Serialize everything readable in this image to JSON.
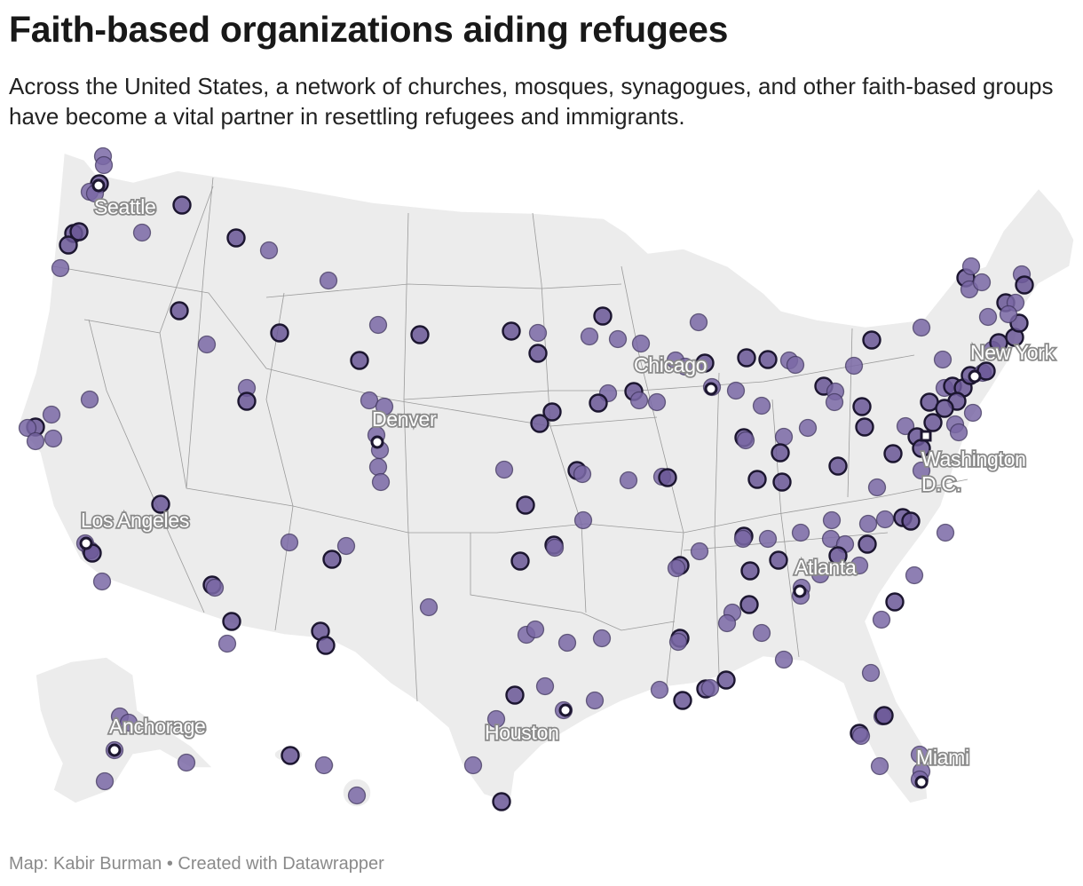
{
  "title": "Faith-based organizations aiding refugees",
  "subtitle": "Across the United States, a network of churches, mosques, synagogues, and other faith-based groups have become a vital partner in resettling refugees and immigrants.",
  "footer": "Map: Kabir Burman • Created with Datawrapper",
  "colors": {
    "dot": "#7a68a6",
    "dot_stroke": "#3b3157",
    "land": "#ececec",
    "label_halo": "#8a8a8a"
  },
  "cities": [
    {
      "id": "seattle",
      "label": "Seattle"
    },
    {
      "id": "denver",
      "label": "Denver"
    },
    {
      "id": "chicago",
      "label": "Chicago"
    },
    {
      "id": "new-york",
      "label": "New York"
    },
    {
      "id": "washington",
      "label": "Washington D.C."
    },
    {
      "id": "los-angeles",
      "label": "Los Angeles"
    },
    {
      "id": "atlanta",
      "label": "Atlanta"
    },
    {
      "id": "houston",
      "label": "Houston"
    },
    {
      "id": "anchorage",
      "label": "Anchorage"
    },
    {
      "id": "miami",
      "label": "Miami"
    }
  ]
}
